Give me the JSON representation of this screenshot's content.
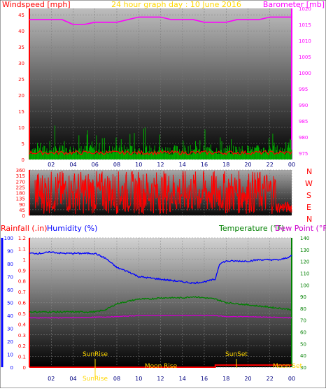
{
  "header": {
    "left_label": "Windspeed [mph]",
    "title": "24 hour graph day : 10 June 2016",
    "right_label": "Barometer [mb]"
  },
  "middle": {
    "compass": [
      "N",
      "W",
      "S",
      "E",
      "N"
    ]
  },
  "bottom_header": {
    "rainfall": "Rainfall (.in)",
    "humidity": "Humidity (%)",
    "temperature": "Temperature (°F)",
    "dewpoint": "Dew Point (°F)"
  },
  "events": {
    "sunrise": "SunRise",
    "sunset": "SunSet",
    "moonrise": "Moon Rise",
    "moonset": "Moon Set",
    "sunrise_axis": "SunRise"
  },
  "colors": {
    "wind": "#ff0000",
    "gust": "#00aa00",
    "baro": "#ff00ff",
    "humidity": "#0000ff",
    "temperature": "#008000",
    "dewpoint": "#cc00cc",
    "rain": "#ff0000",
    "event": "#ffd700",
    "title": "#ffd700"
  },
  "chart_data": [
    {
      "type": "line",
      "x_ticks": [
        "02",
        "04",
        "06",
        "08",
        "10",
        "12",
        "14",
        "16",
        "18",
        "20",
        "22",
        "00"
      ],
      "y_left_ticks": [
        0,
        5,
        10,
        15,
        20,
        25,
        30,
        35,
        40,
        45
      ],
      "y_right_ticks": [
        975,
        980,
        985,
        990,
        995,
        1000,
        1005,
        1010,
        1015,
        1020
      ],
      "ylim_left": [
        0,
        47
      ],
      "ylim_right": [
        973,
        1020
      ],
      "series": [
        {
          "name": "Barometer",
          "axis": "right",
          "x": [
            0,
            1,
            3,
            4,
            5,
            6,
            7,
            8,
            9,
            10,
            11,
            12,
            13,
            14,
            15,
            16,
            17,
            18,
            19,
            20,
            21,
            22,
            23,
            24
          ],
          "values": [
            1016.5,
            1016.5,
            1016.5,
            1015,
            1015,
            1015.7,
            1015.7,
            1015.7,
            1016.5,
            1017.3,
            1017.3,
            1017.3,
            1016.5,
            1016.5,
            1016.5,
            1015.7,
            1015.7,
            1015.7,
            1016.5,
            1016.5,
            1016.5,
            1017.3,
            1017.3,
            1017.3
          ]
        }
      ]
    },
    {
      "type": "bar",
      "y_ticks": [
        0,
        45,
        90,
        135,
        180,
        225,
        270,
        315,
        360
      ],
      "ylim": [
        0,
        360
      ]
    },
    {
      "type": "line",
      "x_ticks": [
        "02",
        "04",
        "06",
        "08",
        "10",
        "12",
        "14",
        "16",
        "18",
        "20",
        "22",
        "00"
      ],
      "y_left_rain_ticks": [
        0,
        0.1,
        0.2,
        0.3,
        0.4,
        0.5,
        0.6,
        0.7,
        0.8,
        0.9,
        1,
        1.1,
        1.2
      ],
      "y_left_hum_ticks": [
        0,
        10,
        20,
        30,
        40,
        50,
        60,
        70,
        80,
        90,
        100
      ],
      "y_right_ticks": [
        30,
        40,
        50,
        60,
        70,
        80,
        90,
        100,
        110,
        120,
        130,
        140
      ],
      "ylim_humidity": [
        0,
        100
      ],
      "ylim_right": [
        30,
        140
      ],
      "series": [
        {
          "name": "Humidity",
          "x": [
            0,
            1,
            2,
            3,
            4,
            5,
            6,
            7,
            8,
            9,
            10,
            11,
            12,
            13,
            14,
            15,
            16,
            17,
            17.4,
            18,
            19,
            20,
            21,
            22,
            23,
            24
          ],
          "values": [
            88,
            88,
            89,
            88,
            88,
            88,
            88,
            84,
            77,
            74,
            70,
            69,
            68,
            67,
            66,
            65,
            66,
            68,
            80,
            82,
            82,
            82,
            83,
            83,
            83,
            86
          ]
        },
        {
          "name": "Temperature",
          "x": [
            0,
            2,
            4,
            6,
            7,
            8,
            9,
            10,
            11,
            12,
            13,
            14,
            15,
            16,
            17,
            18,
            19,
            20,
            22,
            24
          ],
          "values": [
            77,
            77,
            77,
            77,
            79,
            84,
            86,
            88,
            88,
            89,
            89,
            89,
            90,
            89,
            88,
            85,
            84,
            83,
            81,
            79
          ]
        },
        {
          "name": "Dew Point",
          "x": [
            0,
            4,
            8,
            10,
            12,
            14,
            16,
            17,
            18,
            20,
            24
          ],
          "values": [
            72,
            72,
            73,
            74,
            74,
            74,
            74,
            74,
            73,
            73,
            72
          ]
        },
        {
          "name": "Rainfall",
          "x": [
            0,
            17,
            17.01,
            24
          ],
          "values": [
            0,
            0,
            0.02,
            0.02
          ]
        }
      ]
    }
  ]
}
